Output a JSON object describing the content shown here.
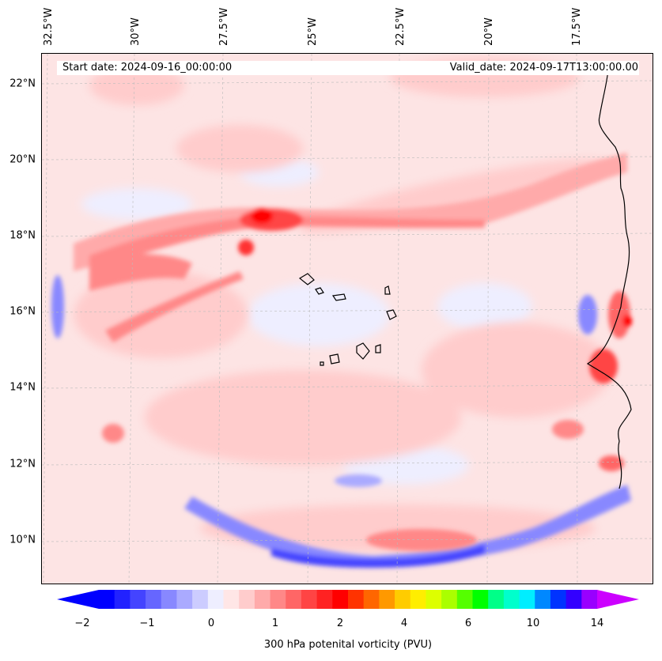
{
  "header": {
    "start_date": "Start date: 2024-09-16_00:00:00",
    "valid_date": "Valid_date: 2024-09-17T13:00:00.00"
  },
  "lon_labels": [
    "32.5°W",
    "30°W",
    "27.5°W",
    "25°W",
    "22.5°W",
    "20°W",
    "17.5°W"
  ],
  "lat_labels": [
    "22°N",
    "20°N",
    "18°N",
    "16°N",
    "14°N",
    "12°N",
    "10°N"
  ],
  "colorbar": {
    "title": "300 hPa potenital vorticity (PVU)",
    "ticks": [
      "−2",
      "−1",
      "0",
      "1",
      "2",
      "4",
      "6",
      "10",
      "14"
    ],
    "colors": [
      "#0000ff",
      "#2222ff",
      "#4444ff",
      "#6666ff",
      "#8888ff",
      "#aaaaff",
      "#ccccff",
      "#eeeeff",
      "#ffe6e6",
      "#ffcccc",
      "#ffaaaa",
      "#ff8888",
      "#ff6666",
      "#ff4444",
      "#ff2222",
      "#ff0000",
      "#ff3300",
      "#ff6600",
      "#ff9900",
      "#ffcc00",
      "#ffee00",
      "#ddff00",
      "#aaff00",
      "#55ff00",
      "#00ff00",
      "#00ff88",
      "#00ffcc",
      "#00eeff",
      "#0088ff",
      "#0033ff",
      "#3300ff",
      "#9900ff"
    ],
    "low_extend_color": "#0000ff",
    "high_extend_color": "#cc00ff"
  }
}
